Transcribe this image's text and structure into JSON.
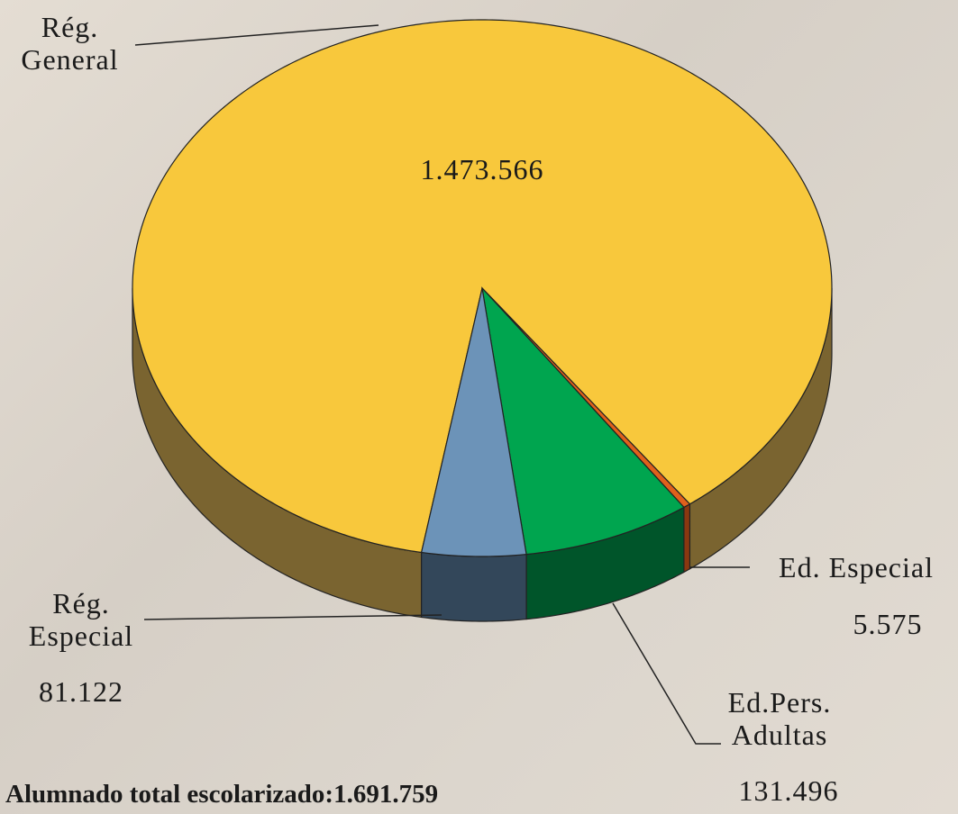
{
  "chart_data": {
    "type": "pie",
    "categories": [
      "Rég. General",
      "Ed. Especial",
      "Ed.Pers. Adultas",
      "Rég. Especial"
    ],
    "values": [
      1473566,
      5575,
      131496,
      81122
    ],
    "value_labels": [
      "1.473.566",
      "5.575",
      "131.496",
      "81.122"
    ],
    "colors": [
      "#f8c83c",
      "#e0601c",
      "#00a54f",
      "#6c93b8"
    ],
    "side_colors": [
      "#7a6430",
      "#8a3810",
      "#00552a",
      "#33475a"
    ],
    "annotation": "Alumnado total escolarizado:1.691.759"
  }
}
